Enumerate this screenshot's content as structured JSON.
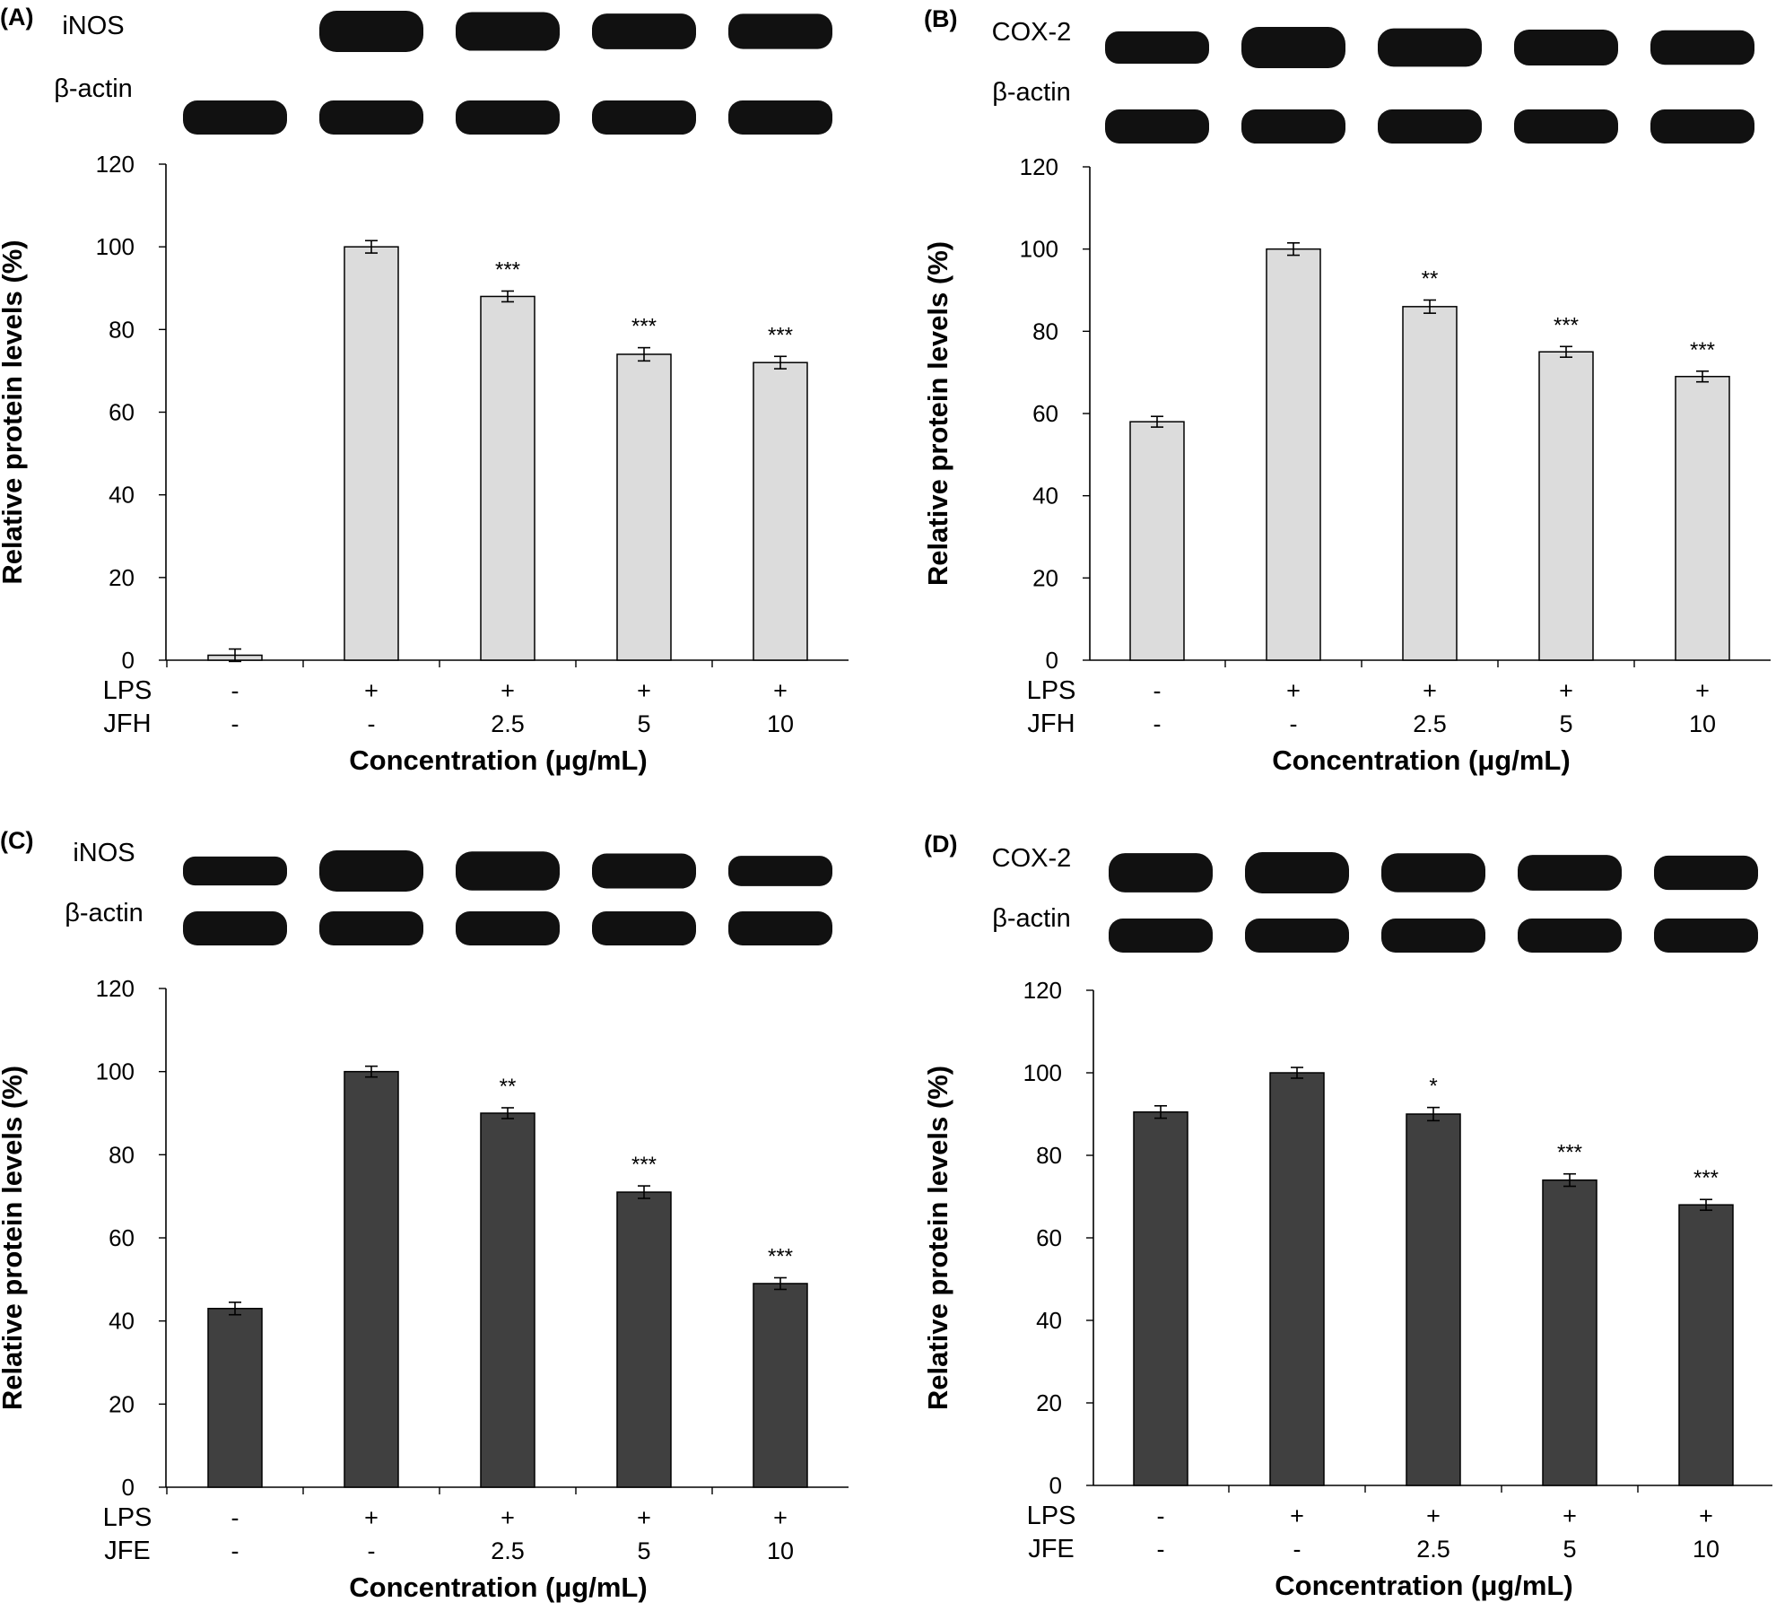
{
  "chart_data": [
    {
      "type": "bar",
      "panel_label": "(A)",
      "blot_labels": [
        "iNOS",
        "β-actin"
      ],
      "ylabel": "Relative protein levels (%)",
      "xlabel": "Concentration (μg/mL)",
      "ylim": [
        0,
        120
      ],
      "yticks": [
        0,
        20,
        40,
        60,
        80,
        100,
        120
      ],
      "row_labels": [
        "LPS",
        "JFH"
      ],
      "lps": [
        "-",
        "+",
        "+",
        "+",
        "+"
      ],
      "treatment": [
        "-",
        "-",
        "2.5",
        "5",
        "10"
      ],
      "values": [
        1.2,
        100,
        88,
        74,
        72
      ],
      "errors": [
        1.5,
        1.5,
        1.3,
        1.6,
        1.5
      ],
      "significance": [
        "",
        "",
        "***",
        "***",
        "***"
      ],
      "bar_color": "#dcdcdc",
      "grid": false
    },
    {
      "type": "bar",
      "panel_label": "(B)",
      "blot_labels": [
        "COX-2",
        "β-actin"
      ],
      "ylabel": "Relative protein levels (%)",
      "xlabel": "Concentration (μg/mL)",
      "ylim": [
        0,
        120
      ],
      "yticks": [
        0,
        20,
        40,
        60,
        80,
        100,
        120
      ],
      "row_labels": [
        "LPS",
        "JFH"
      ],
      "lps": [
        "-",
        "+",
        "+",
        "+",
        "+"
      ],
      "treatment": [
        "-",
        "-",
        "2.5",
        "5",
        "10"
      ],
      "values": [
        58,
        100,
        86,
        75,
        69
      ],
      "errors": [
        1.3,
        1.5,
        1.6,
        1.3,
        1.3
      ],
      "significance": [
        "",
        "",
        "**",
        "***",
        "***"
      ],
      "bar_color": "#dcdcdc",
      "grid": false
    },
    {
      "type": "bar",
      "panel_label": "(C)",
      "blot_labels": [
        "iNOS",
        "β-actin"
      ],
      "ylabel": "Relative protein levels (%)",
      "xlabel": "Concentration (μg/mL)",
      "ylim": [
        0,
        120
      ],
      "yticks": [
        0,
        20,
        40,
        60,
        80,
        100,
        120
      ],
      "row_labels": [
        "LPS",
        "JFE"
      ],
      "lps": [
        "-",
        "+",
        "+",
        "+",
        "+"
      ],
      "treatment": [
        "-",
        "-",
        "2.5",
        "5",
        "10"
      ],
      "values": [
        43,
        100,
        90,
        71,
        49
      ],
      "errors": [
        1.5,
        1.3,
        1.3,
        1.5,
        1.4
      ],
      "significance": [
        "",
        "",
        "**",
        "***",
        "***"
      ],
      "bar_color": "#404040",
      "grid": false
    },
    {
      "type": "bar",
      "panel_label": "(D)",
      "blot_labels": [
        "COX-2",
        "β-actin"
      ],
      "ylabel": "Relative protein levels (%)",
      "xlabel": "Concentration (μg/mL)",
      "ylim": [
        0,
        120
      ],
      "yticks": [
        0,
        20,
        40,
        60,
        80,
        100,
        120
      ],
      "row_labels": [
        "LPS",
        "JFE"
      ],
      "lps": [
        "-",
        "+",
        "+",
        "+",
        "+"
      ],
      "treatment": [
        "-",
        "-",
        "2.5",
        "5",
        "10"
      ],
      "values": [
        90.5,
        100,
        90,
        74,
        68
      ],
      "errors": [
        1.5,
        1.3,
        1.6,
        1.5,
        1.3
      ],
      "significance": [
        "",
        "",
        "*",
        "***",
        "***"
      ],
      "bar_color": "#404040",
      "grid": false
    }
  ]
}
